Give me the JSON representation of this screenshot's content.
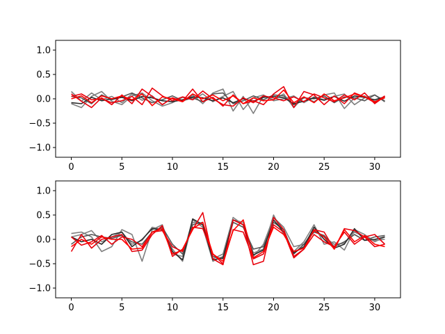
{
  "chart_data": [
    {
      "type": "line",
      "title": "",
      "xlabel": "",
      "ylabel": "",
      "xlim": [
        -1.55,
        32.55
      ],
      "ylim": [
        -1.2,
        1.2
      ],
      "xticks": [
        0,
        5,
        10,
        15,
        20,
        25,
        30
      ],
      "yticks": [
        -1.0,
        -0.5,
        0.0,
        0.5,
        1.0
      ],
      "xtick_labels": [
        "0",
        "5",
        "10",
        "15",
        "20",
        "25",
        "30"
      ],
      "ytick_labels": [
        "−1.0",
        "−0.5",
        "0.0",
        "0.5",
        "1.0"
      ],
      "grid": false,
      "legend": false,
      "x": [
        0,
        1,
        2,
        3,
        4,
        5,
        6,
        7,
        8,
        9,
        10,
        11,
        12,
        13,
        14,
        15,
        16,
        17,
        18,
        19,
        20,
        21,
        22,
        23,
        24,
        25,
        26,
        27,
        28,
        29,
        30,
        31
      ],
      "series": [
        {
          "color": "#7f7f7f",
          "values": [
            0.15,
            -0.05,
            0.12,
            -0.02,
            0.05,
            -0.08,
            0.1,
            -0.03,
            0.06,
            -0.12,
            0.02,
            -0.06,
            0.08,
            -0.1,
            0.12,
            0.2,
            -0.25,
            0.05,
            -0.3,
            0.06,
            -0.02,
            0.1,
            -0.18,
            0.04,
            -0.06,
            0.08,
            0.12,
            -0.2,
            0.02,
            0.06,
            -0.05,
            0.03
          ]
        },
        {
          "color": "#7f7f7f",
          "values": [
            -0.1,
            -0.18,
            0.05,
            0.15,
            -0.05,
            -0.12,
            0.06,
            0.12,
            -0.04,
            -0.15,
            -0.08,
            0.03,
            -0.02,
            0.1,
            -0.06,
            0.05,
            0.15,
            -0.22,
            0.02,
            0.08,
            -0.04,
            0.0,
            0.06,
            -0.08,
            0.04,
            -0.02,
            0.05,
            0.1,
            -0.12,
            0.02,
            0.08,
            -0.04
          ]
        },
        {
          "color": "#555555",
          "values": [
            0.05,
            0.02,
            -0.1,
            0.08,
            -0.02,
            0.04,
            0.12,
            0.02,
            -0.08,
            -0.02,
            0.06,
            -0.04,
            0.02,
            -0.06,
            0.1,
            0.12,
            -0.1,
            -0.04,
            0.06,
            -0.02,
            0.08,
            0.06,
            -0.12,
            0.02,
            0.0,
            0.06,
            -0.08,
            0.04,
            0.02,
            -0.04,
            0.08,
            -0.06
          ]
        },
        {
          "color": "#2b2b2b",
          "values": [
            -0.08,
            -0.1,
            0.03,
            -0.04,
            0.0,
            0.03,
            -0.04,
            0.05,
            0.02,
            -0.04,
            -0.06,
            -0.02,
            0.04,
            0.02,
            -0.04,
            0.02,
            -0.08,
            0.0,
            -0.05,
            0.03,
            0.05,
            0.02,
            -0.1,
            -0.05,
            0.02,
            -0.03,
            0.05,
            -0.05,
            0.06,
            0.03,
            -0.02,
            0.04
          ]
        },
        {
          "color": "#e8000b",
          "values": [
            0.1,
            -0.05,
            -0.18,
            0.02,
            -0.12,
            0.08,
            -0.1,
            0.2,
            0.05,
            -0.12,
            0.02,
            -0.05,
            0.2,
            -0.06,
            0.03,
            -0.15,
            0.08,
            -0.1,
            -0.04,
            -0.12,
            0.1,
            0.25,
            -0.18,
            0.15,
            0.08,
            -0.12,
            0.06,
            -0.1,
            0.12,
            0.04,
            -0.08,
            0.06
          ]
        },
        {
          "color": "#e8000b",
          "values": [
            0.05,
            0.1,
            -0.02,
            0.0,
            -0.08,
            -0.04,
            0.05,
            -0.12,
            0.22,
            0.06,
            -0.04,
            0.04,
            -0.02,
            0.16,
            0.0,
            -0.12,
            -0.15,
            0.02,
            -0.08,
            0.06,
            0.02,
            -0.04,
            0.04,
            -0.06,
            0.1,
            0.02,
            -0.06,
            0.08,
            -0.02,
            0.12,
            -0.1,
            0.05
          ]
        },
        {
          "color": "#ff0000",
          "values": [
            0.0,
            0.06,
            -0.08,
            0.06,
            0.0,
            0.06,
            -0.02,
            0.1,
            -0.14,
            0.04,
            0.0,
            -0.06,
            0.1,
            0.0,
            0.08,
            -0.04,
            0.06,
            -0.1,
            0.02,
            -0.04,
            -0.02,
            0.18,
            -0.08,
            0.04,
            -0.08,
            0.1,
            -0.04,
            0.02,
            0.1,
            0.04,
            -0.06,
            0.02
          ]
        }
      ]
    },
    {
      "type": "line",
      "title": "",
      "xlabel": "",
      "ylabel": "",
      "xlim": [
        -1.55,
        32.55
      ],
      "ylim": [
        -1.2,
        1.2
      ],
      "xticks": [
        0,
        5,
        10,
        15,
        20,
        25,
        30
      ],
      "yticks": [
        -1.0,
        -0.5,
        0.0,
        0.5,
        1.0
      ],
      "xtick_labels": [
        "0",
        "5",
        "10",
        "15",
        "20",
        "25",
        "30"
      ],
      "ytick_labels": [
        "−1.0",
        "−0.5",
        "0.0",
        "0.5",
        "1.0"
      ],
      "grid": false,
      "legend": false,
      "x": [
        0,
        1,
        2,
        3,
        4,
        5,
        6,
        7,
        8,
        9,
        10,
        11,
        12,
        13,
        14,
        15,
        16,
        17,
        18,
        19,
        20,
        21,
        22,
        23,
        24,
        25,
        26,
        27,
        28,
        29,
        30,
        31
      ],
      "series": [
        {
          "color": "#7f7f7f",
          "values": [
            0.12,
            0.15,
            0.05,
            -0.25,
            -0.15,
            0.2,
            0.1,
            -0.45,
            0.2,
            0.3,
            -0.3,
            -0.35,
            0.4,
            0.25,
            -0.45,
            -0.35,
            0.4,
            0.35,
            -0.28,
            -0.2,
            0.5,
            0.1,
            -0.25,
            -0.05,
            0.3,
            -0.1,
            -0.05,
            -0.22,
            0.2,
            0.1,
            -0.05,
            0.05
          ]
        },
        {
          "color": "#7f7f7f",
          "values": [
            0.05,
            0.1,
            0.18,
            -0.05,
            0.05,
            0.15,
            -0.1,
            -0.02,
            0.25,
            0.2,
            -0.2,
            -0.45,
            0.35,
            0.3,
            -0.4,
            -0.3,
            0.45,
            0.3,
            -0.35,
            -0.1,
            0.45,
            0.25,
            -0.15,
            -0.1,
            0.2,
            0.05,
            -0.1,
            -0.08,
            0.15,
            0.05,
            -0.02,
            0.0
          ]
        },
        {
          "color": "#555555",
          "values": [
            -0.1,
            0.05,
            0.1,
            0.05,
            0.02,
            0.08,
            -0.05,
            -0.1,
            0.15,
            0.25,
            -0.1,
            -0.3,
            0.3,
            0.35,
            -0.35,
            -0.4,
            0.35,
            0.25,
            -0.2,
            -0.15,
            0.35,
            0.2,
            -0.3,
            -0.1,
            0.15,
            0.08,
            -0.15,
            -0.05,
            0.1,
            -0.02,
            0.05,
            0.08
          ]
        },
        {
          "color": "#2b2b2b",
          "values": [
            0.05,
            -0.05,
            0.0,
            -0.1,
            0.1,
            0.15,
            -0.15,
            0.0,
            0.22,
            0.2,
            -0.25,
            -0.42,
            0.42,
            0.3,
            -0.42,
            -0.38,
            0.4,
            0.3,
            -0.32,
            -0.22,
            0.4,
            0.15,
            -0.28,
            -0.15,
            0.25,
            0.0,
            -0.18,
            -0.1,
            0.22,
            -0.02,
            0.0,
            0.05
          ]
        },
        {
          "color": "#e8000b",
          "values": [
            -0.25,
            0.1,
            -0.18,
            0.0,
            0.05,
            0.1,
            -0.25,
            -0.22,
            0.1,
            0.28,
            -0.35,
            -0.2,
            0.2,
            0.55,
            -0.4,
            -0.52,
            0.4,
            0.3,
            -0.52,
            -0.45,
            0.45,
            0.2,
            -0.35,
            -0.2,
            0.2,
            0.15,
            -0.2,
            0.22,
            0.18,
            0.05,
            0.1,
            -0.1
          ]
        },
        {
          "color": "#e8000b",
          "values": [
            0.05,
            -0.12,
            -0.05,
            0.08,
            -0.1,
            0.05,
            0.0,
            -0.15,
            0.15,
            0.18,
            -0.15,
            -0.25,
            0.25,
            0.22,
            -0.3,
            -0.5,
            0.2,
            0.15,
            -0.4,
            -0.3,
            0.3,
            0.15,
            -0.38,
            -0.2,
            0.1,
            -0.05,
            -0.15,
            0.15,
            -0.1,
            0.05,
            -0.15,
            -0.1
          ]
        },
        {
          "color": "#ff0000",
          "values": [
            -0.15,
            0.0,
            -0.1,
            0.05,
            0.0,
            0.0,
            -0.2,
            -0.18,
            0.15,
            0.22,
            -0.3,
            -0.22,
            0.22,
            0.35,
            -0.3,
            -0.45,
            0.18,
            0.4,
            -0.38,
            -0.25,
            0.25,
            0.1,
            -0.25,
            -0.18,
            0.18,
            0.05,
            -0.2,
            0.2,
            -0.05,
            0.08,
            -0.1,
            -0.15
          ]
        }
      ]
    }
  ]
}
